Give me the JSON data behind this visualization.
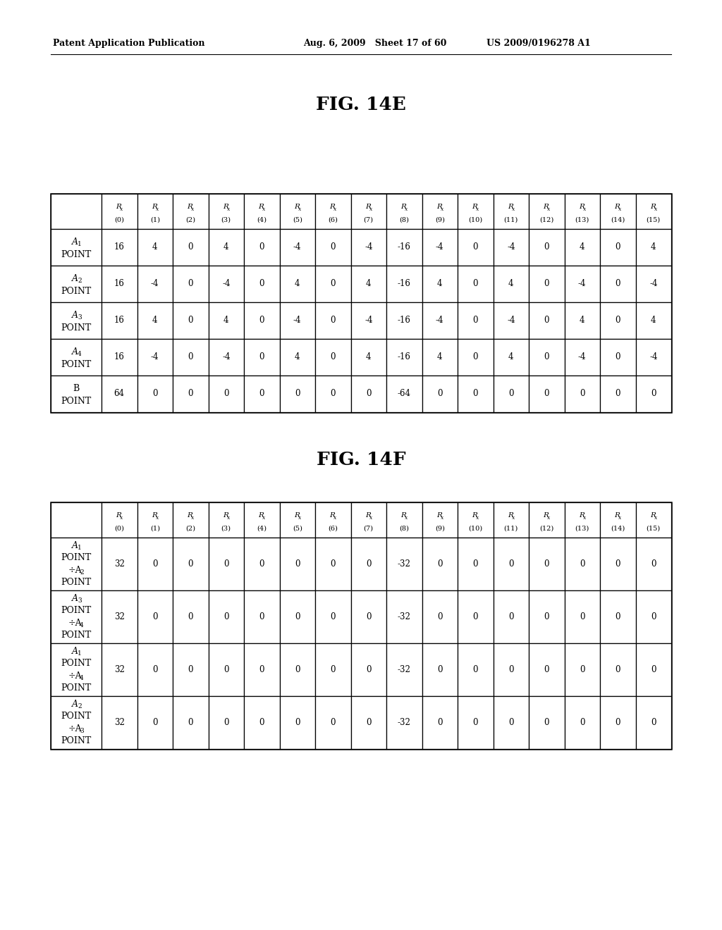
{
  "header_text_left": "Patent Application Publication",
  "header_text_mid": "Aug. 6, 2009   Sheet 17 of 60",
  "header_text_right": "US 2009/0196278 A1",
  "fig14e_title": "FIG. 14E",
  "fig14f_title": "FIG. 14F",
  "table14e": {
    "col_headers_top": [
      "R",
      "R",
      "R",
      "R",
      "R",
      "R",
      "R",
      "R",
      "R",
      "R",
      "R",
      "R",
      "R",
      "R",
      "R",
      "R"
    ],
    "col_headers_sub": [
      "x",
      "x",
      "x",
      "x",
      "x",
      "x",
      "x",
      "x",
      "x",
      "x",
      "x",
      "x",
      "x",
      "x",
      "x",
      "x"
    ],
    "col_headers_num": [
      "(0)",
      "(1)",
      "(2)",
      "(3)",
      "(4)",
      "(5)",
      "(6)",
      "(7)",
      "(8)",
      "(9)",
      "(10)",
      "(11)",
      "(12)",
      "(13)",
      "(14)",
      "(15)"
    ],
    "row_headers_line1": [
      "A",
      "A",
      "A",
      "A",
      "B"
    ],
    "row_headers_sub": [
      "1",
      "2",
      "3",
      "4",
      ""
    ],
    "row_headers_line2": [
      "POINT",
      "POINT",
      "POINT",
      "POINT",
      "POINT"
    ],
    "data": [
      [
        16,
        4,
        0,
        4,
        0,
        -4,
        0,
        -4,
        -16,
        -4,
        0,
        -4,
        0,
        4,
        0,
        4
      ],
      [
        16,
        -4,
        0,
        -4,
        0,
        4,
        0,
        4,
        -16,
        4,
        0,
        4,
        0,
        -4,
        0,
        -4
      ],
      [
        16,
        4,
        0,
        4,
        0,
        -4,
        0,
        -4,
        -16,
        -4,
        0,
        -4,
        0,
        4,
        0,
        4
      ],
      [
        16,
        -4,
        0,
        -4,
        0,
        4,
        0,
        4,
        -16,
        4,
        0,
        4,
        0,
        -4,
        0,
        -4
      ],
      [
        64,
        0,
        0,
        0,
        0,
        0,
        0,
        0,
        -64,
        0,
        0,
        0,
        0,
        0,
        0,
        0
      ]
    ]
  },
  "table14f": {
    "col_headers_top": [
      "R",
      "R",
      "R",
      "R",
      "R",
      "R",
      "R",
      "R",
      "R",
      "R",
      "R",
      "R",
      "R",
      "R",
      "R",
      "R"
    ],
    "col_headers_sub": [
      "x",
      "x",
      "x",
      "x",
      "x",
      "x",
      "x",
      "x",
      "x",
      "x",
      "x",
      "x",
      "x",
      "x",
      "x",
      "x"
    ],
    "col_headers_num": [
      "(0)",
      "(1)",
      "(2)",
      "(3)",
      "(4)",
      "(5)",
      "(6)",
      "(7)",
      "(8)",
      "(9)",
      "(10)",
      "(11)",
      "(12)",
      "(13)",
      "(14)",
      "(15)"
    ],
    "row_headers": [
      [
        "A",
        "1",
        "POINT",
        "÷A",
        "2",
        "POINT"
      ],
      [
        "A",
        "3",
        "POINT",
        "÷A",
        "4",
        "POINT"
      ],
      [
        "A",
        "1",
        "POINT",
        "÷A",
        "4",
        "POINT"
      ],
      [
        "A",
        "2",
        "POINT",
        "÷A",
        "3",
        "POINT"
      ]
    ],
    "data": [
      [
        32,
        0,
        0,
        0,
        0,
        0,
        0,
        0,
        -32,
        0,
        0,
        0,
        0,
        0,
        0,
        0
      ],
      [
        32,
        0,
        0,
        0,
        0,
        0,
        0,
        0,
        -32,
        0,
        0,
        0,
        0,
        0,
        0,
        0
      ],
      [
        32,
        0,
        0,
        0,
        0,
        0,
        0,
        0,
        -32,
        0,
        0,
        0,
        0,
        0,
        0,
        0
      ],
      [
        32,
        0,
        0,
        0,
        0,
        0,
        0,
        0,
        -32,
        0,
        0,
        0,
        0,
        0,
        0,
        0
      ]
    ]
  },
  "bg_color": "#ffffff",
  "text_color": "#000000"
}
